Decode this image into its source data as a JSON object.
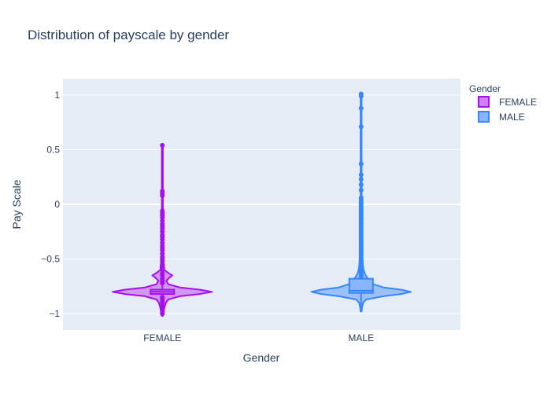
{
  "chart_data": {
    "type": "violin",
    "title": "Distribution of payscale by gender",
    "xlabel": "Gender",
    "ylabel": "Pay Scale",
    "ylim": [
      -1.15,
      1.15
    ],
    "y_ticks": [
      1,
      0.5,
      0,
      -0.5,
      -1
    ],
    "y_tick_labels": [
      "1",
      "0.5",
      "0",
      "−0.5",
      "−1"
    ],
    "categories": [
      "FEMALE",
      "MALE"
    ],
    "legend": {
      "title": "Gender",
      "placement": "right",
      "entries": [
        "FEMALE",
        "MALE"
      ]
    },
    "grid": true,
    "series": [
      {
        "name": "FEMALE",
        "color": "#a70ef0",
        "fill": "#cd83f0",
        "box": {
          "q1": -0.82,
          "median": -0.8,
          "q3": -0.78,
          "whisker_low": -0.86,
          "whisker_high": 0.54,
          "mean": -0.8
        },
        "density": [
          [
            -1.02,
            0.01
          ],
          [
            -0.97,
            0.03
          ],
          [
            -0.93,
            0.05
          ],
          [
            -0.9,
            0.07
          ],
          [
            -0.87,
            0.12
          ],
          [
            -0.84,
            0.35
          ],
          [
            -0.82,
            0.75
          ],
          [
            -0.8,
            1.0
          ],
          [
            -0.78,
            0.75
          ],
          [
            -0.76,
            0.35
          ],
          [
            -0.73,
            0.12
          ],
          [
            -0.7,
            0.08
          ],
          [
            -0.67,
            0.14
          ],
          [
            -0.65,
            0.2
          ],
          [
            -0.63,
            0.13
          ],
          [
            -0.6,
            0.04
          ],
          [
            -0.5,
            0.02
          ],
          [
            -0.3,
            0.015
          ],
          [
            0,
            0.01
          ],
          [
            0.54,
            0.01
          ]
        ],
        "points": [
          -1.0,
          -0.98,
          -0.96,
          -0.93,
          -0.9,
          -0.88,
          -0.86,
          -0.85,
          -0.72,
          -0.7,
          -0.68,
          -0.65,
          -0.63,
          -0.6,
          -0.58,
          -0.55,
          -0.52,
          -0.5,
          -0.48,
          -0.45,
          -0.42,
          -0.4,
          -0.38,
          -0.35,
          -0.32,
          -0.3,
          -0.28,
          -0.25,
          -0.22,
          -0.2,
          -0.18,
          -0.15,
          -0.12,
          -0.1,
          -0.08,
          -0.06,
          0.08,
          0.1,
          0.12,
          0.54
        ]
      },
      {
        "name": "MALE",
        "color": "#3586ff",
        "fill": "#89b6f9",
        "box": {
          "q1": -0.81,
          "median": -0.79,
          "q3": -0.68,
          "whisker_low": -0.98,
          "whisker_high": 1.0,
          "mean": -0.78
        },
        "density": [
          [
            -0.98,
            0.01
          ],
          [
            -0.94,
            0.02
          ],
          [
            -0.9,
            0.04
          ],
          [
            -0.87,
            0.1
          ],
          [
            -0.84,
            0.45
          ],
          [
            -0.82,
            0.8
          ],
          [
            -0.8,
            1.0
          ],
          [
            -0.78,
            0.8
          ],
          [
            -0.76,
            0.45
          ],
          [
            -0.73,
            0.25
          ],
          [
            -0.7,
            0.18
          ],
          [
            -0.67,
            0.12
          ],
          [
            -0.64,
            0.08
          ],
          [
            -0.6,
            0.05
          ],
          [
            -0.55,
            0.035
          ],
          [
            -0.45,
            0.025
          ],
          [
            -0.3,
            0.02
          ],
          [
            0,
            0.01
          ],
          [
            0.5,
            0.01
          ],
          [
            1.0,
            0.01
          ]
        ],
        "points": [
          -0.66,
          -0.64,
          -0.62,
          -0.6,
          -0.58,
          -0.56,
          -0.54,
          -0.52,
          -0.5,
          -0.48,
          -0.46,
          -0.44,
          -0.42,
          -0.4,
          -0.38,
          -0.36,
          -0.34,
          -0.32,
          -0.3,
          -0.28,
          -0.26,
          -0.24,
          -0.22,
          -0.2,
          -0.18,
          -0.16,
          -0.14,
          -0.12,
          -0.1,
          -0.08,
          -0.06,
          -0.04,
          -0.02,
          0.0,
          0.02,
          0.04,
          0.06,
          0.13,
          0.18,
          0.23,
          0.27,
          0.37,
          0.71,
          0.88,
          0.99,
          1.01
        ]
      }
    ]
  }
}
